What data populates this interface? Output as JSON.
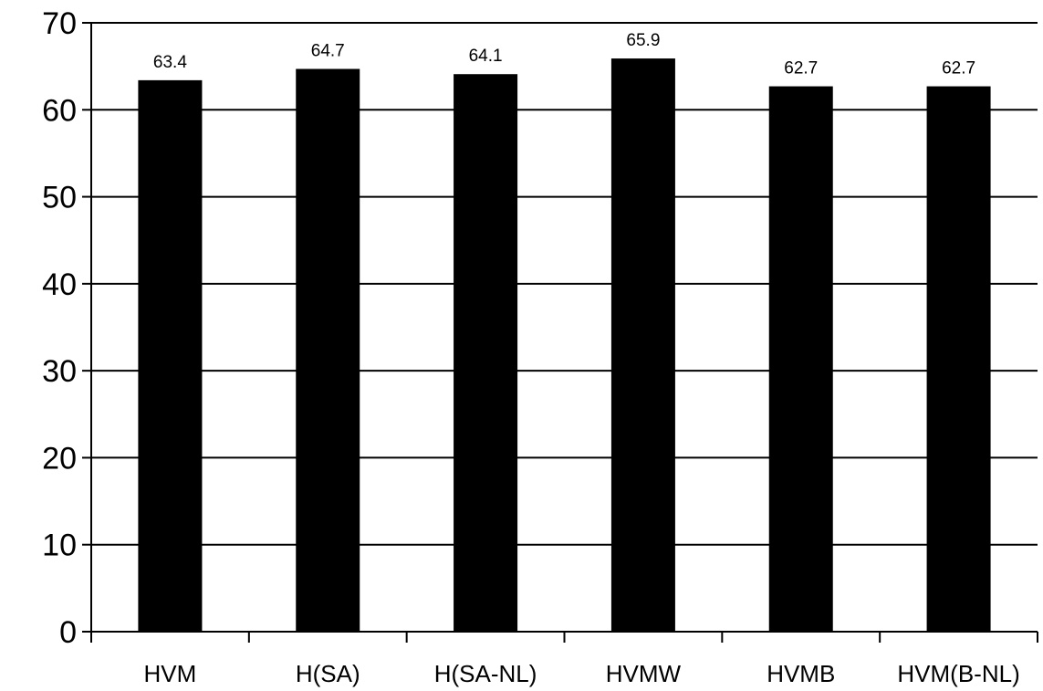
{
  "chart_data": {
    "type": "bar",
    "categories": [
      "HVM",
      "H(SA)",
      "H(SA-NL)",
      "HVMW",
      "HVMB",
      "HVM(B-NL)"
    ],
    "values": [
      63.4,
      64.7,
      64.1,
      65.9,
      62.7,
      62.7
    ],
    "data_labels": [
      "63.4",
      "64.7",
      "64.1",
      "65.9",
      "62.7",
      "62.7"
    ],
    "ylim": [
      0,
      70
    ],
    "yticks": [
      "0",
      "10",
      "20",
      "30",
      "40",
      "50",
      "60",
      "70"
    ],
    "grid": true,
    "legend": "none",
    "bar_color": "#000000"
  }
}
